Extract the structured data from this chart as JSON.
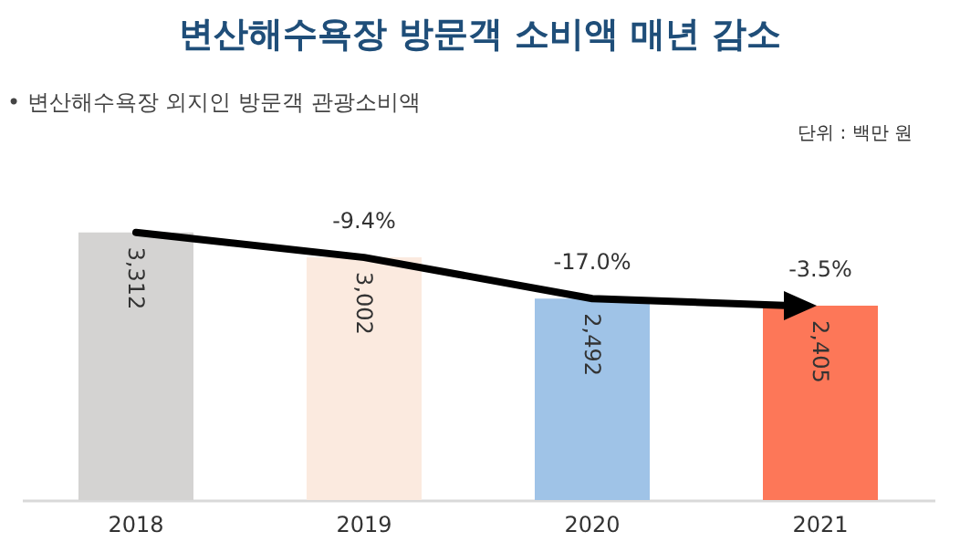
{
  "chart_data": {
    "type": "bar",
    "title": "변산해수욕장 방문객 소비액 매년 감소",
    "subtitle": "• 변산해수욕장 외지인 방문객 관광소비액",
    "annotations": [
      "단위 : 백만 원",
      "-9.4%",
      "-17.0%",
      "-3.5%"
    ],
    "categories": [
      "2018",
      "2019",
      "2020",
      "2021"
    ],
    "values": [
      3312,
      3002,
      2492,
      2405
    ],
    "colors": [
      "#d4d3d2",
      "#fbeadf",
      "#9fc3e7",
      "#fd7758"
    ],
    "value_labels": [
      "3,312",
      "3,002",
      "2,492",
      "2,405"
    ],
    "grid": false
  }
}
